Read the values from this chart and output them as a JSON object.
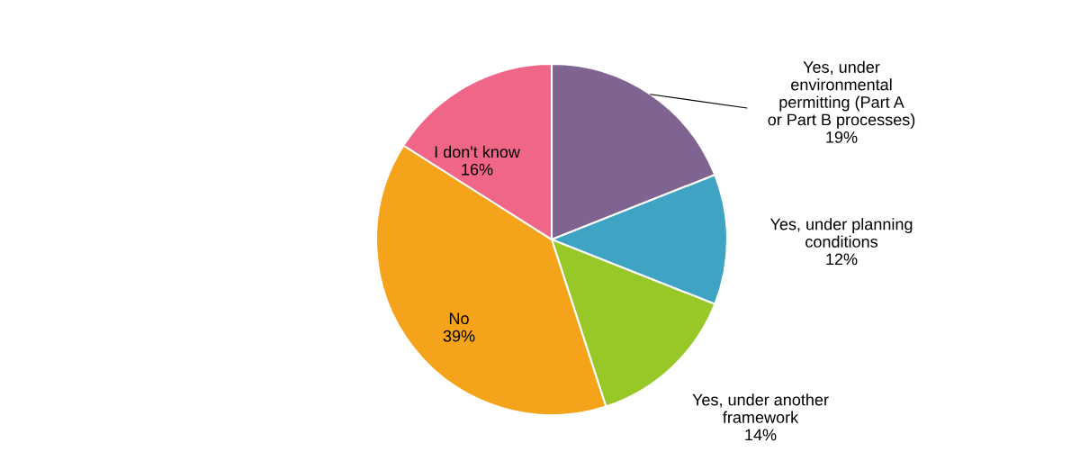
{
  "chart_data": {
    "type": "pie",
    "categories": [
      "Yes, under\nenvironmental\npermitting (Part A\nor Part B processes)",
      "Yes, under planning\nconditions",
      "Yes, under another\nframework",
      "No",
      "I don't know"
    ],
    "values": [
      19,
      12,
      14,
      39,
      16
    ],
    "colors": [
      "#7f6391",
      "#3fa3c4",
      "#98c828",
      "#f5a31a",
      "#f06687"
    ],
    "value_labels": [
      "19%",
      "12%",
      "14%",
      "39%",
      "16%"
    ]
  }
}
